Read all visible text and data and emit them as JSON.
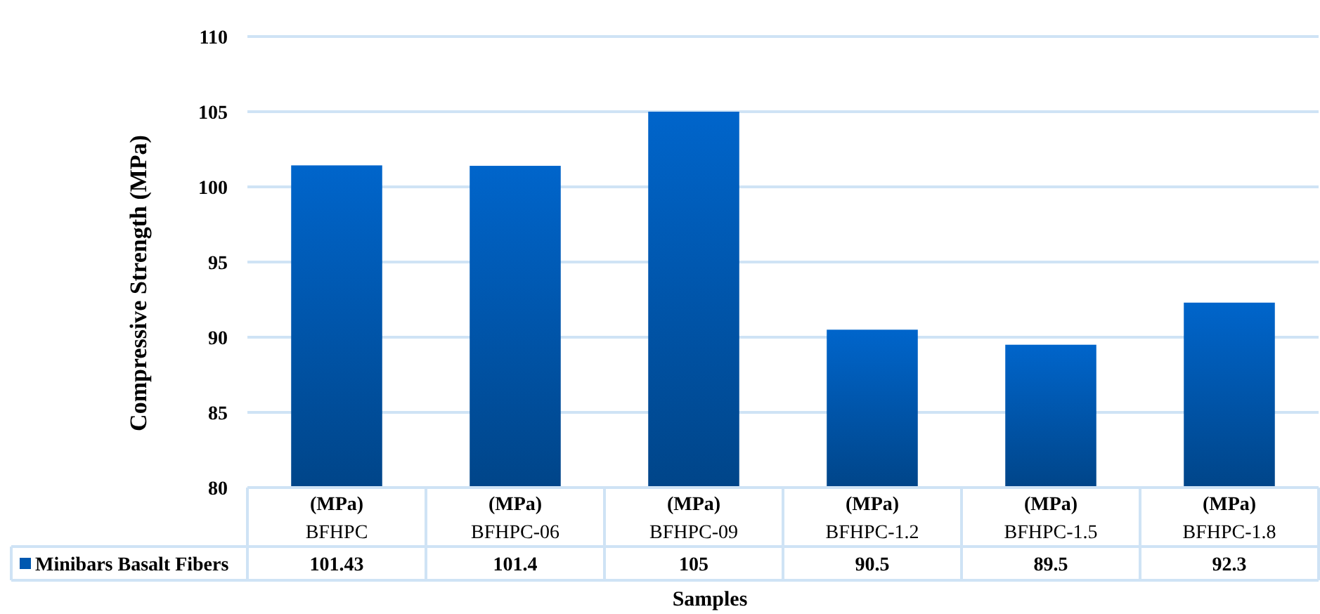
{
  "chart_data": {
    "type": "bar",
    "xlabel": "Samples",
    "ylabel": "Compressive Strength (MPa)",
    "categories": [
      "(MPa)\nBFHPC",
      "(MPa)\nBFHPC-06",
      "(MPa)\nBFHPC-09",
      "(MPa)\nBFHPC-1.2",
      "(MPa)\nBFHPC-1.5",
      "(MPa)\nBFHPC-1.8"
    ],
    "series": [
      {
        "name": "Minibars Basalt Fibers",
        "color": "#0058b0",
        "values": [
          101.43,
          101.4,
          105,
          90.5,
          89.5,
          92.3
        ]
      }
    ],
    "ylim": [
      80,
      110
    ],
    "yticks": [
      80,
      85,
      90,
      95,
      100,
      105,
      110
    ],
    "grid": "y",
    "legend": "bottom",
    "data_labels": true
  }
}
